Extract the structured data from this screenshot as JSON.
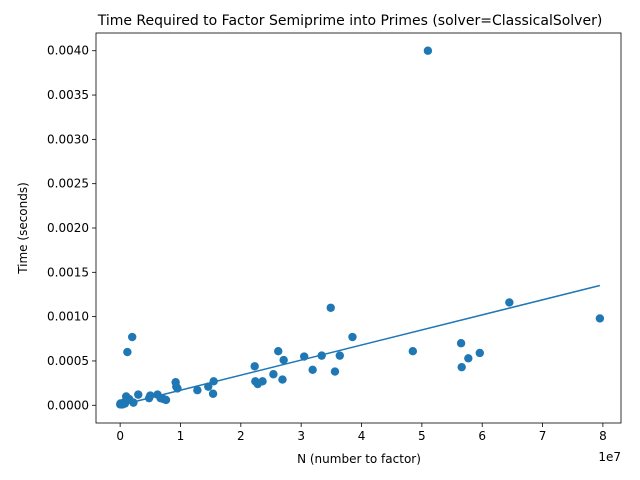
{
  "chart_data": {
    "type": "scatter",
    "title": "Time Required to Factor Semiprime into Primes (solver=ClassicalSolver)",
    "xlabel": "N (number to factor)",
    "ylabel": "Time (seconds)",
    "x_offset_label": "1e7",
    "xlim": [
      -4000000,
      83000000
    ],
    "ylim": [
      -0.0002,
      0.0042
    ],
    "x_ticks": [
      0,
      10000000,
      20000000,
      30000000,
      40000000,
      50000000,
      60000000,
      70000000,
      80000000
    ],
    "x_tick_labels": [
      "0",
      "1",
      "2",
      "3",
      "4",
      "5",
      "6",
      "7",
      "8"
    ],
    "y_ticks": [
      0,
      0.0005,
      0.001,
      0.0015,
      0.002,
      0.0025,
      0.003,
      0.0035,
      0.004
    ],
    "y_tick_labels": [
      "0.0000",
      "0.0005",
      "0.0010",
      "0.0015",
      "0.0020",
      "0.0025",
      "0.0030",
      "0.0035",
      "0.0040"
    ],
    "grid": false,
    "colors": {
      "points": "#1f77b4",
      "fit": "#1f77b4"
    },
    "points": [
      [
        10000,
        1e-05
      ],
      [
        60000,
        2e-05
      ],
      [
        200000,
        1e-05
      ],
      [
        400000,
        1e-05
      ],
      [
        600000,
        3e-05
      ],
      [
        800000,
        2e-05
      ],
      [
        1000000,
        0.0001
      ],
      [
        1200000,
        0.0006
      ],
      [
        1500000,
        7e-05
      ],
      [
        2000000,
        0.00077
      ],
      [
        2200000,
        3e-05
      ],
      [
        3000000,
        0.00012
      ],
      [
        4800000,
        8e-05
      ],
      [
        5000000,
        0.00011
      ],
      [
        6200000,
        0.00012
      ],
      [
        6700000,
        8e-05
      ],
      [
        7200000,
        7e-05
      ],
      [
        7600000,
        6e-05
      ],
      [
        9200000,
        0.00026
      ],
      [
        9300000,
        0.00021
      ],
      [
        9500000,
        0.00019
      ],
      [
        12800000,
        0.00017
      ],
      [
        14600000,
        0.00021
      ],
      [
        15400000,
        0.00013
      ],
      [
        15500000,
        0.00027
      ],
      [
        22300000,
        0.00044
      ],
      [
        22400000,
        0.00027
      ],
      [
        22800000,
        0.00024
      ],
      [
        23600000,
        0.00027
      ],
      [
        25400000,
        0.00035
      ],
      [
        26200000,
        0.00061
      ],
      [
        26900000,
        0.00029
      ],
      [
        27100000,
        0.00051
      ],
      [
        30500000,
        0.00055
      ],
      [
        31900000,
        0.0004
      ],
      [
        33400000,
        0.00056
      ],
      [
        34900000,
        0.0011
      ],
      [
        35600000,
        0.00038
      ],
      [
        36400000,
        0.00056
      ],
      [
        38500000,
        0.00077
      ],
      [
        48500000,
        0.00061
      ],
      [
        51000000,
        0.004
      ],
      [
        56500000,
        0.0007
      ],
      [
        56600000,
        0.00043
      ],
      [
        57700000,
        0.00053
      ],
      [
        59600000,
        0.00059
      ],
      [
        64500000,
        0.00116
      ],
      [
        79500000,
        0.00098
      ]
    ],
    "fit_line": {
      "slope": 1.7e-11,
      "intercept": 0.0,
      "x_start": 0,
      "x_end": 79500000
    }
  }
}
